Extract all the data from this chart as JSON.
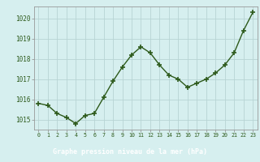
{
  "x": [
    0,
    1,
    2,
    3,
    4,
    5,
    6,
    7,
    8,
    9,
    10,
    11,
    12,
    13,
    14,
    15,
    16,
    17,
    18,
    19,
    20,
    21,
    22,
    23
  ],
  "y": [
    1015.8,
    1015.7,
    1015.3,
    1015.1,
    1014.8,
    1015.2,
    1015.3,
    1016.1,
    1016.9,
    1017.6,
    1018.2,
    1018.6,
    1018.3,
    1017.7,
    1017.2,
    1017.0,
    1016.6,
    1016.8,
    1017.0,
    1017.3,
    1017.7,
    1018.3,
    1019.4,
    1020.3
  ],
  "line_color": "#2d5a1b",
  "marker_color": "#2d5a1b",
  "bg_color": "#d6efef",
  "plot_bg_color": "#d6efef",
  "grid_color": "#b8d4d4",
  "bottom_bar_color": "#2d5a1b",
  "xlabel": "Graphe pression niveau de la mer (hPa)",
  "xlabel_color": "#ffffff",
  "tick_label_color": "#2d5a1b",
  "xtick_label_color": "#2d5a1b",
  "ylim": [
    1014.5,
    1020.6
  ],
  "yticks": [
    1015,
    1016,
    1017,
    1018,
    1019,
    1020
  ],
  "font_family": "monospace",
  "xlabel_fontsize": 6.0,
  "ytick_fontsize": 5.5,
  "xtick_fontsize": 4.8
}
